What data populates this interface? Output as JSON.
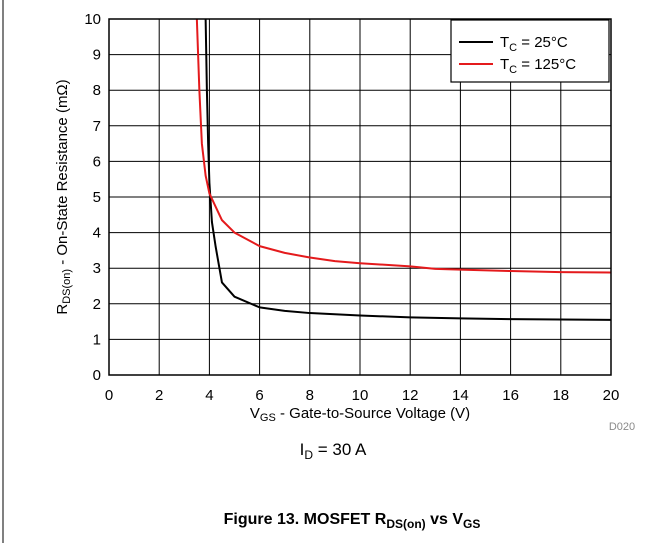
{
  "chart_data": {
    "type": "line",
    "x_axis": {
      "label_main": "V",
      "label_sub": "GS",
      "label_rest": " - Gate-to-Source Voltage (V)",
      "min": 0,
      "max": 20,
      "ticks": [
        "0",
        "2",
        "4",
        "6",
        "8",
        "10",
        "12",
        "14",
        "16",
        "18",
        "20"
      ]
    },
    "y_axis": {
      "label_main": "R",
      "label_sub": "DS(on)",
      "label_rest": " - On-State Resistance (mΩ)",
      "min": 0,
      "max": 10,
      "ticks": [
        "0",
        "1",
        "2",
        "3",
        "4",
        "5",
        "6",
        "7",
        "8",
        "9",
        "10"
      ]
    },
    "grid": true,
    "legend_position": "top-right",
    "series": [
      {
        "legend_main": "T",
        "legend_sub": "C",
        "legend_rest": " = 25°C",
        "color": "#000000",
        "points": [
          [
            3.85,
            10
          ],
          [
            3.9,
            8
          ],
          [
            3.95,
            6.5
          ],
          [
            4.0,
            5.4
          ],
          [
            4.1,
            4.3
          ],
          [
            4.25,
            3.6
          ],
          [
            4.5,
            2.6
          ],
          [
            5.0,
            2.2
          ],
          [
            6.0,
            1.9
          ],
          [
            7.0,
            1.8
          ],
          [
            8.0,
            1.74
          ],
          [
            10.0,
            1.67
          ],
          [
            12.0,
            1.62
          ],
          [
            14.0,
            1.59
          ],
          [
            16.0,
            1.57
          ],
          [
            18.0,
            1.56
          ],
          [
            20.0,
            1.55
          ]
        ]
      },
      {
        "legend_main": "T",
        "legend_sub": "C",
        "legend_rest": " = 125°C",
        "color": "#e41a1c",
        "points": [
          [
            3.5,
            10
          ],
          [
            3.6,
            8
          ],
          [
            3.7,
            6.5
          ],
          [
            3.85,
            5.6
          ],
          [
            4.0,
            5.1
          ],
          [
            4.5,
            4.35
          ],
          [
            5.0,
            4.0
          ],
          [
            6.0,
            3.62
          ],
          [
            7.0,
            3.43
          ],
          [
            8.0,
            3.3
          ],
          [
            9.0,
            3.2
          ],
          [
            10.0,
            3.14
          ],
          [
            12.0,
            3.05
          ],
          [
            13.0,
            2.98
          ],
          [
            14.0,
            2.96
          ],
          [
            16.0,
            2.92
          ],
          [
            18.0,
            2.89
          ],
          [
            20.0,
            2.88
          ]
        ]
      }
    ],
    "condition_main": "I",
    "condition_sub": "D",
    "condition_rest": " = 30 A"
  },
  "figure_id": "D020",
  "caption": {
    "prefix": "Figure 13. MOSFET R",
    "sub1": "DS(on)",
    "middle": " vs V",
    "sub2": "GS"
  }
}
